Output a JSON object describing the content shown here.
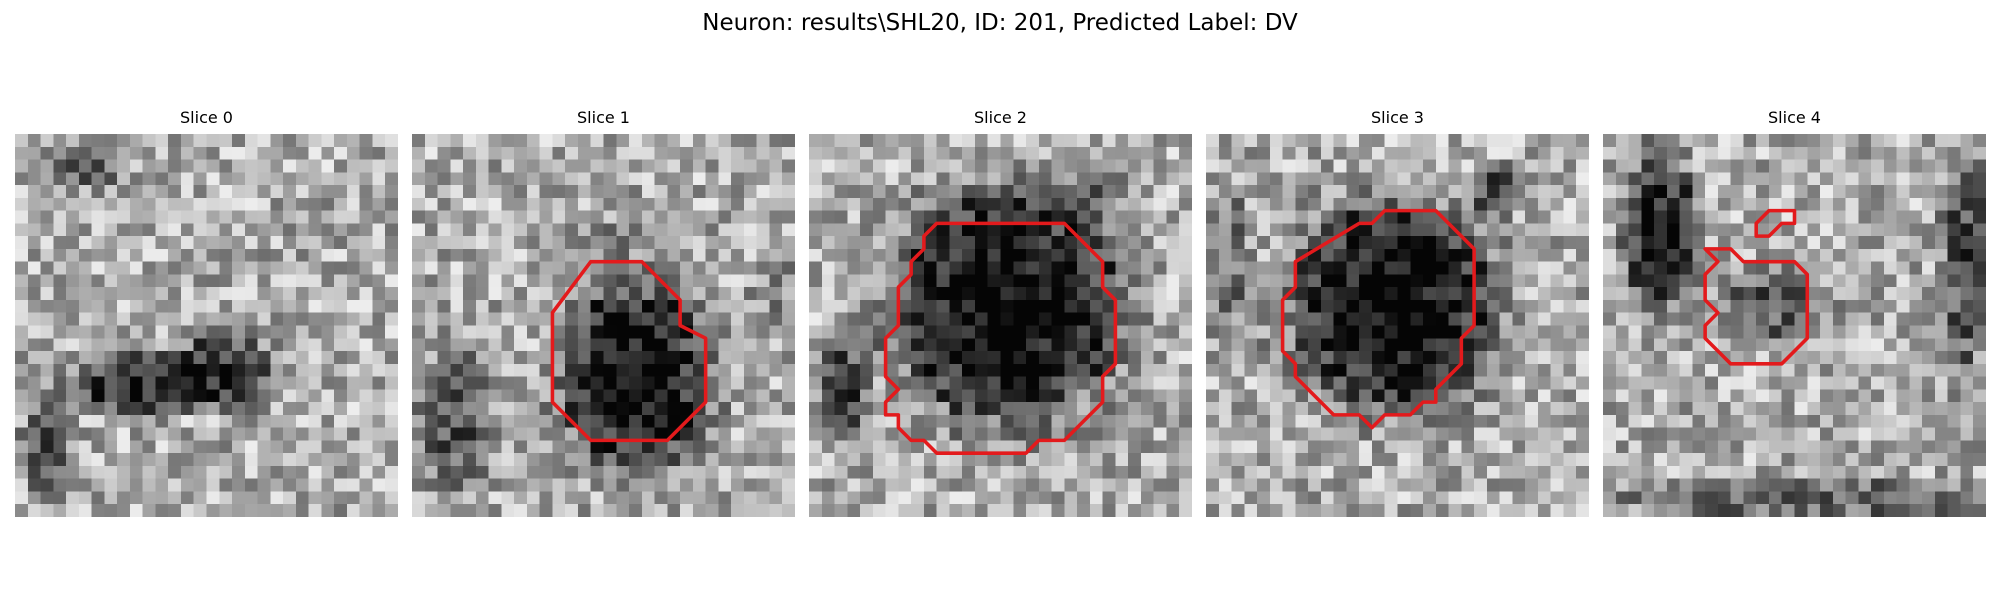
{
  "figure": {
    "title": "Neuron: results\\SHL20, ID: 201, Predicted Label: DV"
  },
  "panels": [
    {
      "title": "Slice 0"
    },
    {
      "title": "Slice 1"
    },
    {
      "title": "Slice 2"
    },
    {
      "title": "Slice 3"
    },
    {
      "title": "Slice 4"
    }
  ],
  "colors": {
    "contour": "#e31a1c",
    "background": "#ffffff"
  }
}
